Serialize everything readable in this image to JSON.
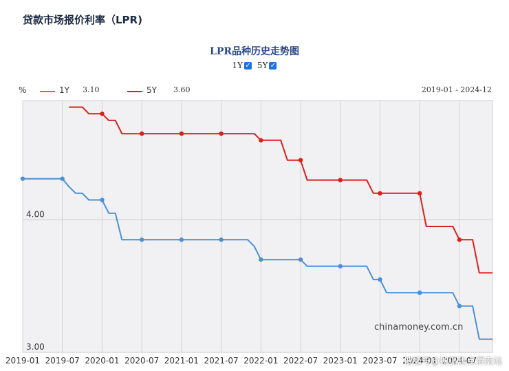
{
  "page_title": "贷款市场报价利率（LPR)",
  "chart_title": "LPR品种历史走势图",
  "toggles": [
    {
      "label": "1Y",
      "checked": true
    },
    {
      "label": "5Y",
      "checked": true
    }
  ],
  "legend": {
    "unit": "%",
    "items": [
      {
        "name": "1Y",
        "value": "3.10",
        "color": "#4a90d9"
      },
      {
        "name": "5Y",
        "value": "3.60",
        "color": "#d9201c"
      }
    ],
    "range": "2019-01 - 2024-12"
  },
  "watermarks": {
    "site": "chinamoney.com.cn",
    "sohu": "搜狐号@搜狐焦点渭南站"
  },
  "chart_data": {
    "type": "line",
    "title": "LPR品种历史走势图",
    "ylabel": "%",
    "xlabel": "",
    "x_range": [
      "2019-01",
      "2024-12"
    ],
    "ylim": [
      3.0,
      4.9
    ],
    "y_ticks": [
      "3.00",
      "4.00"
    ],
    "x_ticks": [
      "2019-01",
      "2019-07",
      "2020-01",
      "2020-07",
      "2021-01",
      "2021-07",
      "2022-01",
      "2022-07",
      "2023-01",
      "2023-07",
      "2024-01",
      "2024-07"
    ],
    "grid": true,
    "legend_position": "top-left",
    "series": [
      {
        "name": "1Y",
        "color": "#4a90d9",
        "points": [
          [
            "2019-01",
            4.31
          ],
          [
            "2019-07",
            4.31
          ],
          [
            "2019-08",
            4.25
          ],
          [
            "2019-09",
            4.2
          ],
          [
            "2019-10",
            4.2
          ],
          [
            "2019-11",
            4.15
          ],
          [
            "2019-12",
            4.15
          ],
          [
            "2020-01",
            4.15
          ],
          [
            "2020-02",
            4.05
          ],
          [
            "2020-03",
            4.05
          ],
          [
            "2020-04",
            3.85
          ],
          [
            "2020-07",
            3.85
          ],
          [
            "2021-01",
            3.85
          ],
          [
            "2021-07",
            3.85
          ],
          [
            "2021-11",
            3.85
          ],
          [
            "2021-12",
            3.8
          ],
          [
            "2022-01",
            3.7
          ],
          [
            "2022-07",
            3.7
          ],
          [
            "2022-08",
            3.65
          ],
          [
            "2023-01",
            3.65
          ],
          [
            "2023-05",
            3.65
          ],
          [
            "2023-06",
            3.55
          ],
          [
            "2023-07",
            3.55
          ],
          [
            "2023-08",
            3.45
          ],
          [
            "2024-01",
            3.45
          ],
          [
            "2024-06",
            3.45
          ],
          [
            "2024-07",
            3.35
          ],
          [
            "2024-09",
            3.35
          ],
          [
            "2024-10",
            3.1
          ],
          [
            "2024-12",
            3.1
          ]
        ],
        "markers": [
          "2019-01",
          "2019-07",
          "2020-01",
          "2020-07",
          "2021-01",
          "2021-07",
          "2022-01",
          "2022-07",
          "2023-01",
          "2023-07",
          "2024-01",
          "2024-07"
        ]
      },
      {
        "name": "5Y",
        "color": "#d9201c",
        "points": [
          [
            "2019-08",
            4.85
          ],
          [
            "2019-10",
            4.85
          ],
          [
            "2019-11",
            4.8
          ],
          [
            "2020-01",
            4.8
          ],
          [
            "2020-02",
            4.75
          ],
          [
            "2020-03",
            4.75
          ],
          [
            "2020-04",
            4.65
          ],
          [
            "2020-07",
            4.65
          ],
          [
            "2021-01",
            4.65
          ],
          [
            "2021-07",
            4.65
          ],
          [
            "2021-12",
            4.65
          ],
          [
            "2022-01",
            4.6
          ],
          [
            "2022-04",
            4.6
          ],
          [
            "2022-05",
            4.45
          ],
          [
            "2022-07",
            4.45
          ],
          [
            "2022-08",
            4.3
          ],
          [
            "2023-01",
            4.3
          ],
          [
            "2023-05",
            4.3
          ],
          [
            "2023-06",
            4.2
          ],
          [
            "2023-07",
            4.2
          ],
          [
            "2024-01",
            4.2
          ],
          [
            "2024-02",
            3.95
          ],
          [
            "2024-06",
            3.95
          ],
          [
            "2024-07",
            3.85
          ],
          [
            "2024-09",
            3.85
          ],
          [
            "2024-10",
            3.6
          ],
          [
            "2024-12",
            3.6
          ]
        ],
        "markers": [
          "2020-01",
          "2020-07",
          "2021-01",
          "2021-07",
          "2022-01",
          "2022-07",
          "2023-01",
          "2023-07",
          "2024-01",
          "2024-07"
        ]
      }
    ]
  }
}
